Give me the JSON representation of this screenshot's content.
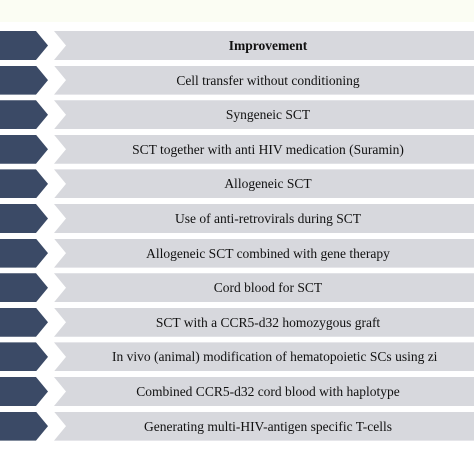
{
  "colors": {
    "marker": "#3b4a66",
    "bar": "#d7d8dd",
    "text": "#111111"
  },
  "table": {
    "header": "Improvement",
    "rows": [
      "Cell transfer without conditioning",
      "Syngeneic SCT",
      "SCT together with anti HIV medication (Suramin)",
      "Allogeneic SCT",
      "Use of anti-retrovirals during SCT",
      "Allogeneic SCT combined with gene therapy",
      "Cord blood for SCT",
      "SCT with a CCR5-d32 homozygous graft",
      "In vivo (animal) modification of hematopoietic SCs using zi",
      "Combined CCR5-d32 cord blood with haplotype",
      "Generating multi-HIV-antigen specific T-cells"
    ]
  }
}
